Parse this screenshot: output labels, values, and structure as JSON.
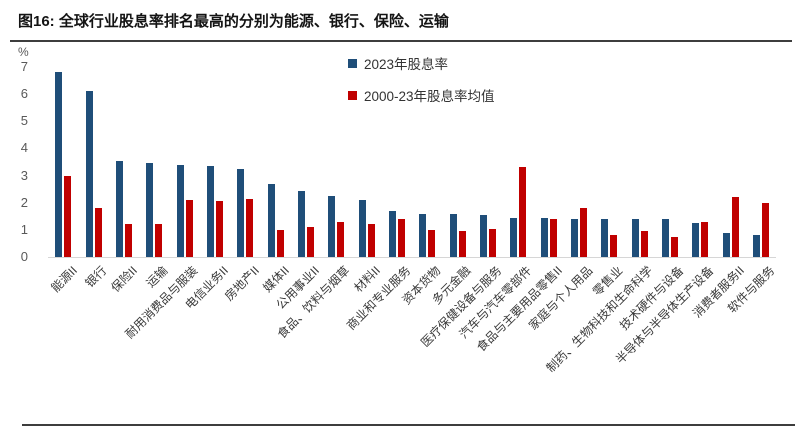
{
  "figure": {
    "title": "图16: 全球行业股息率排名最高的分别为能源、银行、保险、运输"
  },
  "chart_data": {
    "type": "bar",
    "figure_label": "图16",
    "title": "全球行业股息率排名最高的分别为能源、银行、保险、运输",
    "ylabel": "%",
    "ylim": [
      0,
      7
    ],
    "yticks": [
      7,
      6,
      5,
      4,
      3,
      2,
      1,
      0
    ],
    "grid": false,
    "legend_position": "top-center",
    "categories": [
      "能源II",
      "银行",
      "保险II",
      "运输",
      "耐用消费品与服装",
      "电信业务II",
      "房地产II",
      "媒体II",
      "公用事业II",
      "食品、饮料与烟草",
      "材料II",
      "商业和专业服务",
      "资本货物",
      "多元金融",
      "医疗保健设备与服务",
      "汽车与汽车零部件",
      "食品与主要用品零售II",
      "家庭与个人用品",
      "零售业",
      "制药、生物科技和生命科学",
      "技术硬件与设备",
      "半导体与半导体生产设备",
      "消费者服务II",
      "软件与服务"
    ],
    "series": [
      {
        "name": "2023年股息率",
        "color": "#1f4e79",
        "values": [
          6.8,
          6.1,
          3.55,
          3.45,
          3.4,
          3.35,
          3.25,
          2.7,
          2.45,
          2.25,
          2.1,
          1.7,
          1.6,
          1.6,
          1.55,
          1.45,
          1.45,
          1.4,
          1.4,
          1.4,
          1.4,
          1.25,
          0.9,
          0.8
        ]
      },
      {
        "name": "2000-23年股息率均值",
        "color": "#c00000",
        "values": [
          3.0,
          1.8,
          1.2,
          1.2,
          2.1,
          2.05,
          2.15,
          1.0,
          1.1,
          1.3,
          1.2,
          1.4,
          1.0,
          0.95,
          1.05,
          3.3,
          1.4,
          1.8,
          0.8,
          0.95,
          0.75,
          1.3,
          2.2,
          2.0
        ]
      }
    ]
  }
}
